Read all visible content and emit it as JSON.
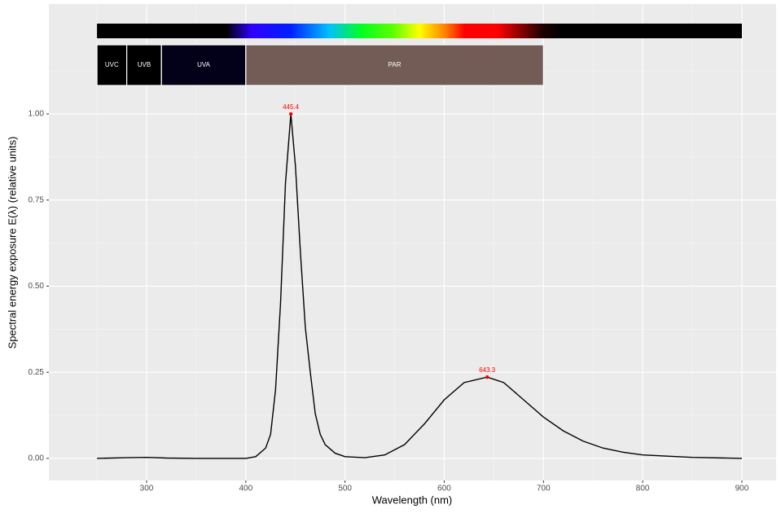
{
  "chart_data": {
    "type": "line",
    "x_label": "Wavelength (nm)",
    "y_label": "Spectral energy exposure  E(λ)  (relative units)",
    "x": [
      250,
      280,
      300,
      320,
      350,
      400,
      410,
      420,
      425,
      430,
      435,
      440,
      445.4,
      450,
      455,
      460,
      465,
      470,
      475,
      480,
      490,
      500,
      520,
      540,
      560,
      580,
      600,
      620,
      643.3,
      660,
      680,
      700,
      720,
      740,
      760,
      780,
      800,
      850,
      900
    ],
    "series": [
      {
        "color": "#000000",
        "values": [
          0,
          0.002,
          0.003,
          0.001,
          0,
          0,
          0.005,
          0.03,
          0.07,
          0.2,
          0.45,
          0.8,
          1.0,
          0.85,
          0.6,
          0.38,
          0.25,
          0.13,
          0.07,
          0.04,
          0.015,
          0.005,
          0.002,
          0.01,
          0.04,
          0.1,
          0.17,
          0.22,
          0.236,
          0.22,
          0.17,
          0.12,
          0.08,
          0.05,
          0.03,
          0.018,
          0.01,
          0.003,
          0
        ]
      }
    ],
    "peaks": {
      "color": "#ff0000",
      "x": [
        445.4,
        643.3
      ],
      "y": [
        1.0,
        0.236
      ]
    },
    "bands": [
      {
        "label": "UVC",
        "range": [
          250,
          280
        ],
        "color": "#000000"
      },
      {
        "label": "UVB",
        "range": [
          280,
          315
        ],
        "color": "#000000"
      },
      {
        "label": "UVA",
        "range": [
          315,
          400
        ],
        "color": "#03001a"
      },
      {
        "label": "PAR",
        "range": [
          400,
          700
        ],
        "color": "#735c55"
      }
    ],
    "xlim": [
      201.5,
      934.5
    ],
    "ylim": [
      -0.064,
      1.319
    ],
    "xticks": [
      300,
      400,
      500,
      600,
      700,
      800,
      900
    ],
    "yticks": [
      {
        "value": 0,
        "label": "0.00"
      },
      {
        "value": 0.25,
        "label": "0.25"
      },
      {
        "value": 0.5,
        "label": "0.50"
      },
      {
        "value": 0.75,
        "label": "0.75"
      },
      {
        "value": 1.0,
        "label": "1.00"
      }
    ],
    "grid": true
  }
}
